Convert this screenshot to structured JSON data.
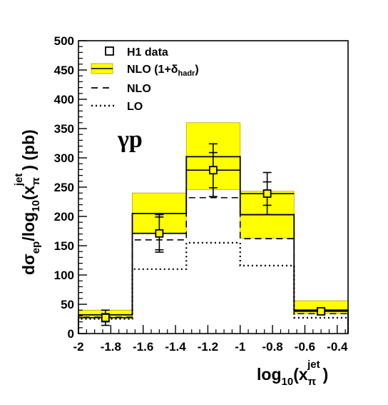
{
  "chart_data": {
    "type": "histogram",
    "x_edges": [
      -2.0,
      -1.667,
      -1.333,
      -1.0,
      -0.667,
      -0.333
    ],
    "xlim": [
      -2.0,
      -0.333
    ],
    "ylim": [
      0,
      500
    ],
    "x_tick_values": [
      -2,
      -1.8,
      -1.6,
      -1.4,
      -1.2,
      -1,
      -0.8,
      -0.6,
      -0.4
    ],
    "x_tick_labels": [
      "-2",
      "-1.8",
      "-1.6",
      "-1.4",
      "-1.2",
      "-1",
      "-0.8",
      "-0.6",
      "-0.4"
    ],
    "y_tick_values": [
      0,
      50,
      100,
      150,
      200,
      250,
      300,
      350,
      400,
      450,
      500
    ],
    "y_tick_labels": [
      "0",
      "50",
      "100",
      "150",
      "200",
      "250",
      "300",
      "350",
      "400",
      "450",
      "500"
    ],
    "xlabel": {
      "main": "log",
      "sub": "10",
      "paren_open": "(x",
      "base_sub": "π",
      "sup": "jet",
      "paren_close": ")"
    },
    "ylabel": {
      "d": "dσ",
      "ep": "ep",
      "slash": "/log",
      "ten": "10",
      "paren": "(x",
      "pi": "π",
      "jet": "jet",
      "close": ") (pb)"
    },
    "annotation": "γp",
    "legend": {
      "position": "top-left",
      "entries": [
        {
          "label": "H1 data",
          "style": "marker-open-square"
        },
        {
          "label_main": "NLO (1+δ",
          "label_sub": "hadr",
          "label_end": ")",
          "style": "yellow-band"
        },
        {
          "label": "NLO",
          "style": "dashed"
        },
        {
          "label": "LO",
          "style": "dotted"
        }
      ]
    },
    "series": [
      {
        "name": "H1 data",
        "type": "points",
        "x": [
          -1.833,
          -1.5,
          -1.167,
          -0.833,
          -0.5
        ],
        "y": [
          27,
          171,
          279,
          239,
          38
        ],
        "stat_err": [
          7,
          28,
          30,
          20,
          4
        ],
        "tot_err": [
          13,
          32,
          45,
          36,
          6
        ]
      },
      {
        "name": "NLO (1+δhadr)",
        "type": "band",
        "central": [
          32,
          205,
          302,
          203,
          40
        ],
        "low": [
          27,
          172,
          246,
          163,
          34
        ],
        "high": [
          40,
          240,
          360,
          243,
          56
        ]
      },
      {
        "name": "NLO",
        "type": "step-dashed",
        "values": [
          28,
          160,
          232,
          162,
          34
        ]
      },
      {
        "name": "LO",
        "type": "step-dotted",
        "values": [
          25,
          110,
          155,
          116,
          27
        ]
      }
    ],
    "band_color": "#ffff00",
    "band_edge_color": "#b8a000"
  }
}
